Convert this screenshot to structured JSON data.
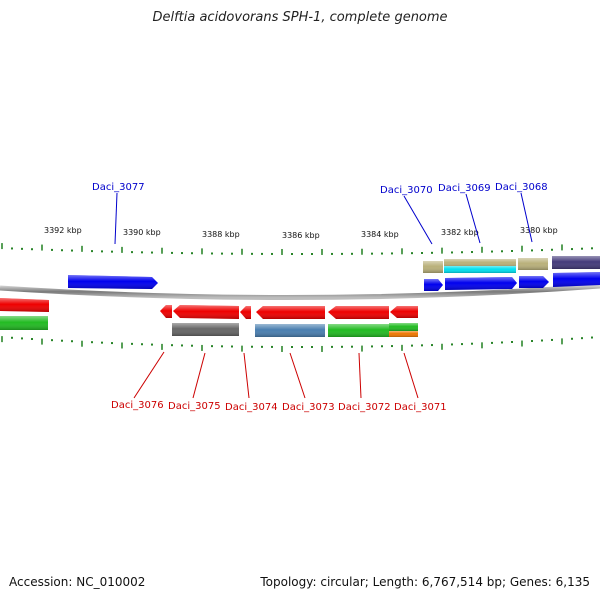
{
  "title": "Delftia acidovorans SPH-1, complete genome",
  "footer": {
    "accession": "Accession: NC_010002",
    "summary": "Topology: circular; Length: 6,767,514 bp; Genes: 6,135"
  },
  "ruler_labels": [
    "3392 kbp",
    "3390 kbp",
    "3388 kbp",
    "3386 kbp",
    "3384 kbp",
    "3382 kbp",
    "3380 kbp"
  ],
  "gene_labels_top": [
    "Daci_3077",
    "Daci_3070",
    "Daci_3069",
    "Daci_3068"
  ],
  "gene_labels_bottom": [
    "Daci_3076",
    "Daci_3075",
    "Daci_3074",
    "Daci_3073",
    "Daci_3072",
    "Daci_3071"
  ],
  "colors": {
    "forward_label": "#0000cc",
    "reverse_label": "#cc0000",
    "blue": "#0000ee",
    "red": "#ee0000",
    "green": "#22bb22",
    "gray": "#666666",
    "steel": "#4a7fb0",
    "tan": "#b9b07a",
    "cyan": "#00e0f0",
    "navy": "#443a7a",
    "orange": "#ee7700",
    "tick": "#117711",
    "backbone": "#888888"
  }
}
